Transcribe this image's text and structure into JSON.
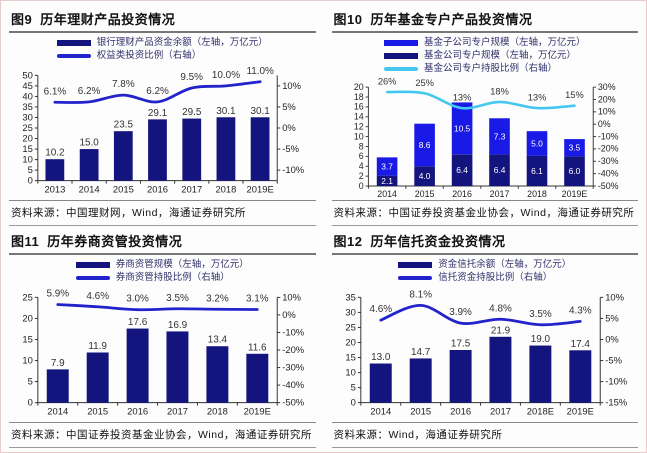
{
  "chart_data": [
    {
      "type": "bar",
      "figure_label": "图9",
      "title": "历年理财产品投资情况",
      "categories": [
        "2013",
        "2014",
        "2015",
        "2016",
        "2017",
        "2018",
        "2019E"
      ],
      "series": [
        {
          "name": "银行理财产品资金余额（左轴，万亿元）",
          "color": "#14147F",
          "values": [
            10.2,
            15.0,
            23.5,
            29.1,
            29.5,
            30.1,
            30.1
          ],
          "labels": [
            "10.2",
            "15.0",
            "23.5",
            "29.1",
            "29.5",
            "30.1",
            "30.1"
          ],
          "label_pos": "above"
        }
      ],
      "line_series": [
        {
          "name": "权益类投资比例（右轴）",
          "color": "#2323CC",
          "axis": "right",
          "values": [
            6.1,
            6.2,
            7.8,
            6.2,
            9.5,
            10.0,
            11.0
          ],
          "labels": [
            "6.1%",
            "6.2%",
            "7.8%",
            "6.2%",
            "9.5%",
            "10.0%",
            "11.0%"
          ]
        }
      ],
      "left_axis": {
        "min": 0,
        "max": 50,
        "ticks": [
          0,
          5,
          10,
          15,
          20,
          25,
          30,
          35,
          40,
          45,
          50
        ]
      },
      "right_axis": {
        "min": -12.5,
        "max": 12.5,
        "ticks": [
          -10,
          -5,
          0,
          5,
          10
        ],
        "suffix": "%"
      },
      "legend": [
        {
          "label": "银行理财产品资金余额（左轴，万亿元）",
          "color": "#14147F",
          "kind": "bar"
        },
        {
          "label": "权益类投资比例（右轴）",
          "color": "#2323CC",
          "kind": "line"
        }
      ],
      "source": "资料来源：中国理财网，Wind，海通证券研究所"
    },
    {
      "type": "bar",
      "figure_label": "图10",
      "title": "历年基金专户产品投资情况",
      "categories": [
        "2014",
        "2015",
        "2016",
        "2017",
        "2018",
        "2019E"
      ],
      "series": [
        {
          "name": "基金公司专户规模（左轴，万亿元）",
          "color": "#14147F",
          "values": [
            2.1,
            4.0,
            6.4,
            6.4,
            6.1,
            6.0
          ],
          "labels": [
            "2.1",
            "4.0",
            "6.4",
            "6.4",
            "6.1",
            "6.0"
          ],
          "label_pos": "inside"
        },
        {
          "name": "基金子公司专户规模（左轴，万亿元）",
          "color": "#1A1AE6",
          "values": [
            3.7,
            8.6,
            10.5,
            7.3,
            5.0,
            3.5
          ],
          "labels": [
            "3.7",
            "8.6",
            "10.5",
            "7.3",
            "5.0",
            "3.5"
          ],
          "label_pos": "inside"
        }
      ],
      "line_series": [
        {
          "name": "基金公司专户持股比例（右轴）",
          "color": "#45C8F0",
          "axis": "right",
          "values": [
            26,
            25,
            13,
            18,
            13,
            15
          ],
          "labels": [
            "26%",
            "25%",
            "13%",
            "18%",
            "13%",
            "15%"
          ]
        }
      ],
      "left_axis": {
        "min": 0,
        "max": 20,
        "ticks": [
          0,
          2,
          4,
          6,
          8,
          10,
          12,
          14,
          16,
          18,
          20
        ]
      },
      "right_axis": {
        "min": -50,
        "max": 30,
        "ticks": [
          -50,
          -40,
          -30,
          -20,
          -10,
          0,
          10,
          20,
          30
        ],
        "suffix": "%"
      },
      "legend": [
        {
          "label": "基金子公司专户规模（左轴，万亿元）",
          "color": "#1A1AE6",
          "kind": "bar"
        },
        {
          "label": "基金公司专户规模（左轴，万亿元）",
          "color": "#14147F",
          "kind": "bar"
        },
        {
          "label": "基金公司专户持股比例（右轴）",
          "color": "#45C8F0",
          "kind": "line"
        }
      ],
      "source": "资料来源：中国证券投资基金业协会，Wind，海通证券研究所"
    },
    {
      "type": "bar",
      "figure_label": "图11",
      "title": "历年券商资管投资情况",
      "categories": [
        "2014",
        "2015",
        "2016",
        "2017",
        "2018",
        "2019E"
      ],
      "series": [
        {
          "name": "券商资管规模（左轴，万亿元）",
          "color": "#14147F",
          "values": [
            7.9,
            11.9,
            17.6,
            16.9,
            13.4,
            11.6
          ],
          "labels": [
            "7.9",
            "11.9",
            "17.6",
            "16.9",
            "13.4",
            "11.6"
          ],
          "label_pos": "above"
        }
      ],
      "line_series": [
        {
          "name": "券商资管持股比例（右轴）",
          "color": "#2323CC",
          "axis": "right",
          "values": [
            5.9,
            4.6,
            3.0,
            3.5,
            3.2,
            3.1
          ],
          "labels": [
            "5.9%",
            "4.6%",
            "3.0%",
            "3.5%",
            "3.2%",
            "3.1%"
          ]
        }
      ],
      "left_axis": {
        "min": 0,
        "max": 25,
        "ticks": [
          0,
          5,
          10,
          15,
          20,
          25
        ]
      },
      "right_axis": {
        "min": -50,
        "max": 10,
        "ticks": [
          -50,
          -40,
          -30,
          -20,
          -10,
          0,
          10
        ],
        "suffix": "%"
      },
      "legend": [
        {
          "label": "券商资管规模（左轴，万亿元）",
          "color": "#14147F",
          "kind": "bar"
        },
        {
          "label": "券商资管持股比例（右轴）",
          "color": "#2323CC",
          "kind": "line"
        }
      ],
      "source": "资料来源：中国证券投资基金业协会，Wind，海通证券研究所"
    },
    {
      "type": "bar",
      "figure_label": "图12",
      "title": "历年信托资金投资情况",
      "categories": [
        "2014",
        "2015",
        "2016",
        "2017",
        "2018E",
        "2019E"
      ],
      "series": [
        {
          "name": "资金信托余额（左轴，万亿元）",
          "color": "#14147F",
          "values": [
            13.0,
            14.7,
            17.5,
            21.9,
            19.0,
            17.4
          ],
          "labels": [
            "13.0",
            "14.7",
            "17.5",
            "21.9",
            "19.0",
            "17.4"
          ],
          "label_pos": "above"
        }
      ],
      "line_series": [
        {
          "name": "信托资金持股比例（右轴）",
          "color": "#2323CC",
          "axis": "right",
          "values": [
            4.6,
            8.1,
            3.9,
            4.8,
            3.5,
            4.3
          ],
          "labels": [
            "4.6%",
            "8.1%",
            "3.9%",
            "4.8%",
            "3.5%",
            "4.3%"
          ]
        }
      ],
      "left_axis": {
        "min": 0,
        "max": 35,
        "ticks": [
          0,
          5,
          10,
          15,
          20,
          25,
          30,
          35
        ]
      },
      "right_axis": {
        "min": -15,
        "max": 10,
        "ticks": [
          -15,
          -10,
          -5,
          0,
          5,
          10
        ],
        "suffix": "%"
      },
      "legend": [
        {
          "label": "资金信托余额（左轴，万亿元）",
          "color": "#14147F",
          "kind": "bar"
        },
        {
          "label": "信托资金持股比例（右轴）",
          "color": "#2323CC",
          "kind": "line"
        }
      ],
      "source": "资料来源：Wind，海通证券研究所"
    }
  ]
}
